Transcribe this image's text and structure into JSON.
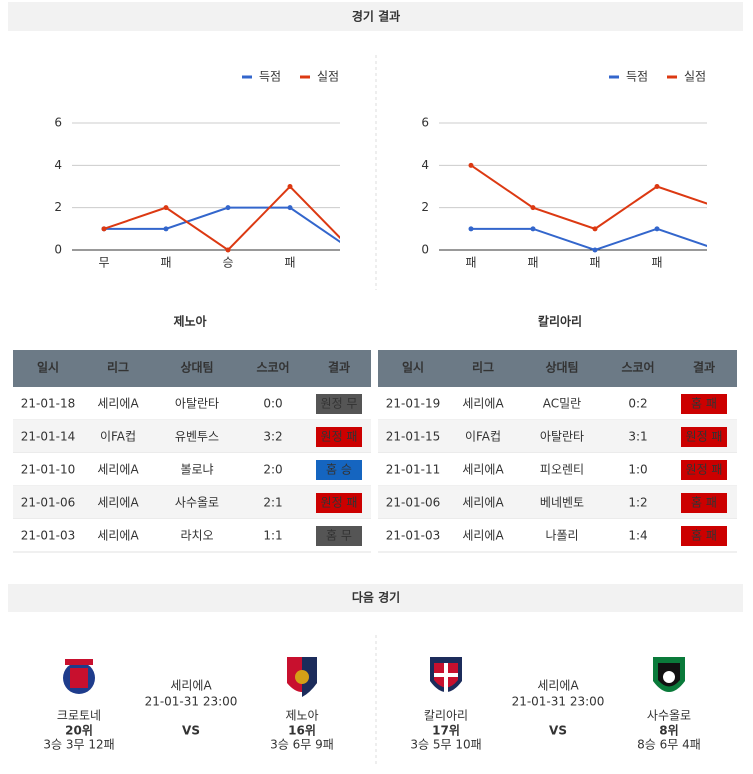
{
  "header": {
    "title": "경기 결과",
    "next_title": "다음 경기"
  },
  "chart_data": [
    {
      "type": "line",
      "categories": [
        "무",
        "패",
        "승",
        "패",
        null
      ],
      "series": [
        {
          "name": "득점",
          "color": "#3366cc",
          "values": [
            1,
            1,
            2,
            2,
            0
          ]
        },
        {
          "name": "실점",
          "color": "#dc3912",
          "values": [
            1,
            2,
            0,
            3,
            0
          ]
        }
      ],
      "ylim": [
        0,
        6
      ],
      "yticks": [
        0,
        2,
        4,
        6
      ],
      "grid": true,
      "legend": "top"
    },
    {
      "type": "line",
      "categories": [
        "패",
        "패",
        "패",
        "패",
        null
      ],
      "series": [
        {
          "name": "득점",
          "color": "#3366cc",
          "values": [
            1,
            1,
            0,
            1,
            0
          ]
        },
        {
          "name": "실점",
          "color": "#dc3912",
          "values": [
            4,
            2,
            1,
            3,
            2
          ]
        }
      ],
      "ylim": [
        0,
        6
      ],
      "yticks": [
        0,
        2,
        4,
        6
      ],
      "grid": true,
      "legend": "top"
    }
  ],
  "teams": [
    {
      "name": "제노아",
      "table": {
        "columns": [
          "일시",
          "리그",
          "상대팀",
          "스코어",
          "결과"
        ],
        "rows": [
          [
            "21-01-18",
            "세리에A",
            "아탈란타",
            "0:0",
            "원정 무"
          ],
          [
            "21-01-14",
            "이FA컵",
            "유벤투스",
            "3:2",
            "원정 패"
          ],
          [
            "21-01-10",
            "세리에A",
            "볼로냐",
            "2:0",
            "홈 승"
          ],
          [
            "21-01-06",
            "세리에A",
            "사수올로",
            "2:1",
            "원정 패"
          ],
          [
            "21-01-03",
            "세리에A",
            "라치오",
            "1:1",
            "홈 무"
          ]
        ],
        "result_colors": [
          "#555555",
          "#cc0000",
          "#1565c0",
          "#cc0000",
          "#555555"
        ]
      }
    },
    {
      "name": "칼리아리",
      "table": {
        "columns": [
          "일시",
          "리그",
          "상대팀",
          "스코어",
          "결과"
        ],
        "rows": [
          [
            "21-01-19",
            "세리에A",
            "AC밀란",
            "0:2",
            "홈 패"
          ],
          [
            "21-01-15",
            "이FA컵",
            "아탈란타",
            "3:1",
            "원정 패"
          ],
          [
            "21-01-11",
            "세리에A",
            "피오렌티",
            "1:0",
            "원정 패"
          ],
          [
            "21-01-06",
            "세리에A",
            "베네벤토",
            "1:2",
            "홈 패"
          ],
          [
            "21-01-03",
            "세리에A",
            "나폴리",
            "1:4",
            "홈 패"
          ]
        ],
        "result_colors": [
          "#cc0000",
          "#cc0000",
          "#cc0000",
          "#cc0000",
          "#cc0000"
        ]
      }
    }
  ],
  "next_matches": [
    {
      "league": "세리에A",
      "datetime": "21-01-31 23:00",
      "vs": "VS",
      "home": {
        "name": "크로토네",
        "rank": "20위",
        "record": "3승 3무 12패"
      },
      "away": {
        "name": "제노아",
        "rank": "16위",
        "record": "3승 6무 9패"
      }
    },
    {
      "league": "세리에A",
      "datetime": "21-01-31 23:00",
      "vs": "VS",
      "home": {
        "name": "칼리아리",
        "rank": "17위",
        "record": "3승 5무 10패"
      },
      "away": {
        "name": "사수올로",
        "rank": "8위",
        "record": "8승 6무 4패"
      }
    }
  ]
}
